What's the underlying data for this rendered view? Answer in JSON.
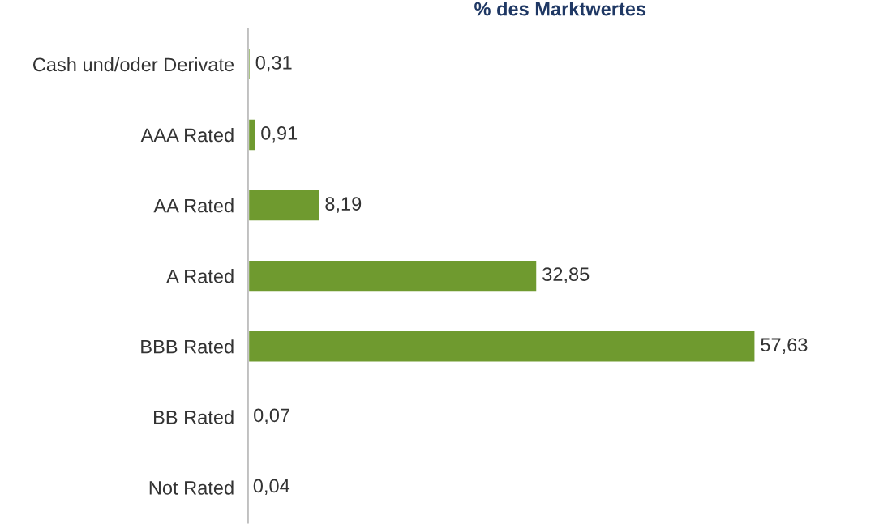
{
  "chart_data": {
    "type": "bar",
    "orientation": "horizontal",
    "title": "% des Marktwertes",
    "categories": [
      "Cash und/oder Derivate",
      "AAA Rated",
      "AA Rated",
      "A Rated",
      "BBB Rated",
      "BB Rated",
      "Not Rated"
    ],
    "values": [
      0.31,
      0.91,
      8.19,
      32.85,
      57.63,
      0.07,
      0.04
    ],
    "value_labels": [
      "0,31",
      "0,91",
      "8,19",
      "32,85",
      "57,63",
      "0,07",
      "0,04"
    ],
    "color": "#6f9a2f",
    "grid": false,
    "legend": false
  }
}
